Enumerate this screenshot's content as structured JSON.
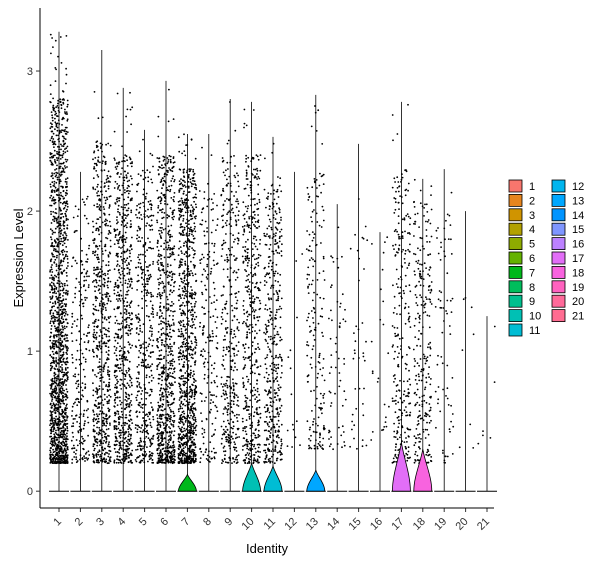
{
  "chart_data": {
    "type": "violin",
    "xlabel": "Identity",
    "ylabel": "Expression Level",
    "ylim": [
      -0.12,
      3.45
    ],
    "y_ticks": [
      0,
      1,
      2,
      3
    ],
    "grid": false,
    "legend_placement": "right",
    "categories": [
      "1",
      "2",
      "3",
      "4",
      "5",
      "6",
      "7",
      "8",
      "9",
      "10",
      "11",
      "12",
      "13",
      "14",
      "15",
      "16",
      "17",
      "18",
      "19",
      "20",
      "21"
    ],
    "colors": [
      "#F8766D",
      "#E7851E",
      "#D09400",
      "#B2A100",
      "#8EAB00",
      "#64B200",
      "#00B81B",
      "#00BD5C",
      "#00C08E",
      "#00C0B4",
      "#00BDD4",
      "#00B5EE",
      "#00A7FF",
      "#0094FF",
      "#7F96FF",
      "#BC81FF",
      "#E26EF7",
      "#F863DF",
      "#FF62BF",
      "#FF6A9A",
      "#FF6C91"
    ],
    "series": [
      {
        "category": "1",
        "max": 3.28,
        "points": 1500,
        "nonzero_low": 0.2,
        "nonzero_high": 2.8,
        "violin_peak": 0.0
      },
      {
        "category": "2",
        "max": 2.28,
        "points": 220,
        "nonzero_low": 0.2,
        "nonzero_high": 2.1,
        "violin_peak": 0.0
      },
      {
        "category": "3",
        "max": 3.15,
        "points": 650,
        "nonzero_low": 0.2,
        "nonzero_high": 2.5,
        "violin_peak": 0.0
      },
      {
        "category": "4",
        "max": 2.88,
        "points": 700,
        "nonzero_low": 0.2,
        "nonzero_high": 2.4,
        "violin_peak": 0.0
      },
      {
        "category": "5",
        "max": 2.58,
        "points": 430,
        "nonzero_low": 0.2,
        "nonzero_high": 2.3,
        "violin_peak": 0.0
      },
      {
        "category": "6",
        "max": 2.93,
        "points": 800,
        "nonzero_low": 0.2,
        "nonzero_high": 2.4,
        "violin_peak": 0.0
      },
      {
        "category": "7",
        "max": 2.55,
        "points": 1000,
        "nonzero_low": 0.2,
        "nonzero_high": 2.3,
        "violin_peak": 0.12
      },
      {
        "category": "8",
        "max": 2.55,
        "points": 200,
        "nonzero_low": 0.2,
        "nonzero_high": 2.2,
        "violin_peak": 0.0
      },
      {
        "category": "9",
        "max": 2.8,
        "points": 380,
        "nonzero_low": 0.2,
        "nonzero_high": 2.4,
        "violin_peak": 0.0
      },
      {
        "category": "10",
        "max": 2.78,
        "points": 480,
        "nonzero_low": 0.2,
        "nonzero_high": 2.4,
        "violin_peak": 0.2
      },
      {
        "category": "11",
        "max": 2.53,
        "points": 430,
        "nonzero_low": 0.2,
        "nonzero_high": 2.2,
        "violin_peak": 0.18
      },
      {
        "category": "12",
        "max": 2.28,
        "points": 15,
        "nonzero_low": 0.3,
        "nonzero_high": 2.2,
        "violin_peak": 0.0
      },
      {
        "category": "13",
        "max": 2.83,
        "points": 190,
        "nonzero_low": 0.3,
        "nonzero_high": 2.3,
        "violin_peak": 0.15
      },
      {
        "category": "14",
        "max": 2.05,
        "points": 60,
        "nonzero_low": 0.3,
        "nonzero_high": 2.0,
        "violin_peak": 0.0
      },
      {
        "category": "15",
        "max": 2.48,
        "points": 40,
        "nonzero_low": 0.3,
        "nonzero_high": 2.2,
        "violin_peak": 0.0
      },
      {
        "category": "16",
        "max": 1.85,
        "points": 25,
        "nonzero_low": 0.3,
        "nonzero_high": 1.8,
        "violin_peak": 0.0
      },
      {
        "category": "17",
        "max": 2.78,
        "points": 280,
        "nonzero_low": 0.2,
        "nonzero_high": 2.3,
        "violin_peak": 0.35
      },
      {
        "category": "18",
        "max": 2.23,
        "points": 260,
        "nonzero_low": 0.2,
        "nonzero_high": 2.1,
        "violin_peak": 0.3
      },
      {
        "category": "19",
        "max": 2.3,
        "points": 70,
        "nonzero_low": 0.2,
        "nonzero_high": 2.0,
        "violin_peak": 0.0
      },
      {
        "category": "20",
        "max": 2.0,
        "points": 8,
        "nonzero_low": 0.3,
        "nonzero_high": 1.9,
        "violin_peak": 0.0
      },
      {
        "category": "21",
        "max": 1.25,
        "points": 6,
        "nonzero_low": 0.3,
        "nonzero_high": 1.2,
        "violin_peak": 0.0
      }
    ]
  }
}
